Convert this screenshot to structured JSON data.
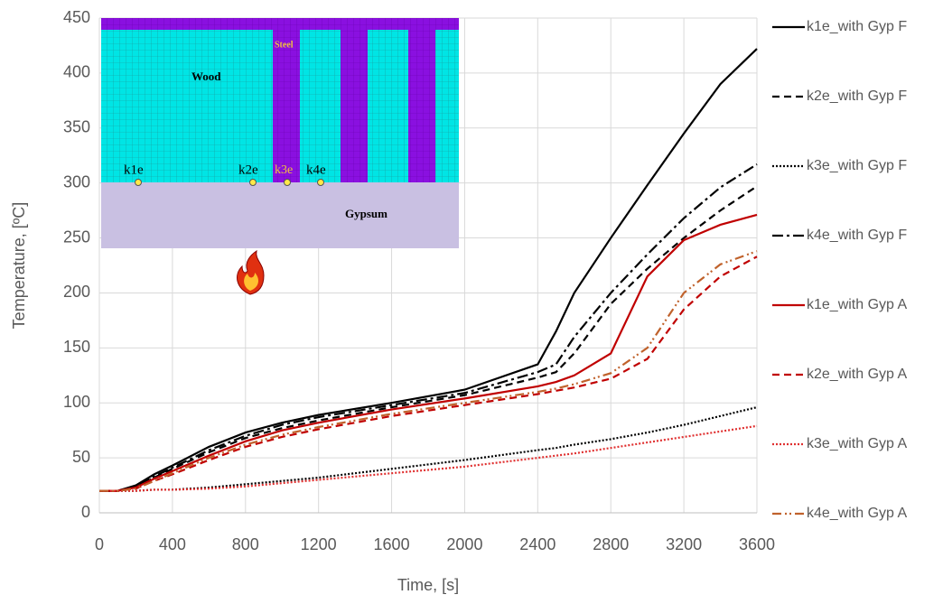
{
  "chart_data": {
    "type": "line",
    "xlabel": "Time, [s]",
    "ylabel": "Temperature, [ºC]",
    "x": [
      0,
      100,
      200,
      300,
      400,
      600,
      800,
      1000,
      1200,
      1600,
      2000,
      2400,
      2500,
      2600,
      2800,
      3000,
      3200,
      3400,
      3600
    ],
    "xlim": [
      0,
      3600
    ],
    "xticks": [
      0,
      400,
      800,
      1200,
      1600,
      2000,
      2400,
      2800,
      3200,
      3600
    ],
    "ylim": [
      0,
      450
    ],
    "yticks": [
      0,
      50,
      100,
      150,
      200,
      250,
      300,
      350,
      400,
      450
    ],
    "grid": true,
    "legend": "right",
    "series": [
      {
        "name": "k1e_with Gyp F",
        "color": "#000000",
        "line_style": "solid",
        "values": [
          20,
          20,
          25,
          35,
          43,
          60,
          73,
          82,
          89,
          100,
          112,
          135,
          165,
          200,
          250,
          298,
          345,
          390,
          422
        ]
      },
      {
        "name": "k2e_with Gyp F",
        "color": "#000000",
        "line_style": "dashed",
        "values": [
          20,
          20,
          23,
          32,
          40,
          55,
          68,
          77,
          84,
          96,
          107,
          123,
          128,
          145,
          190,
          222,
          250,
          275,
          297
        ]
      },
      {
        "name": "k3e_with Gyp F",
        "color": "#000000",
        "line_style": "dotted",
        "values": [
          20,
          20,
          20,
          21,
          21,
          23,
          26,
          29,
          32,
          40,
          48,
          57,
          59,
          62,
          67,
          73,
          80,
          88,
          96
        ]
      },
      {
        "name": "k4e_with Gyp F",
        "color": "#000000",
        "line_style": "dashdot",
        "values": [
          20,
          20,
          24,
          33,
          41,
          57,
          70,
          80,
          87,
          98,
          109,
          128,
          135,
          160,
          200,
          235,
          268,
          296,
          317
        ]
      },
      {
        "name": "k1e_with Gyp A",
        "color": "#c00000",
        "line_style": "solid",
        "values": [
          20,
          20,
          23,
          31,
          38,
          52,
          65,
          75,
          82,
          94,
          104,
          115,
          119,
          125,
          145,
          215,
          248,
          262,
          271
        ]
      },
      {
        "name": "k2e_with Gyp A",
        "color": "#c00000",
        "line_style": "dashed",
        "values": [
          20,
          20,
          22,
          29,
          35,
          48,
          60,
          69,
          76,
          88,
          98,
          108,
          111,
          114,
          122,
          140,
          185,
          215,
          233
        ]
      },
      {
        "name": "k3e_with Gyp A",
        "color": "#e03030",
        "line_style": "dotted",
        "values": [
          20,
          20,
          20,
          21,
          21,
          22,
          24,
          27,
          30,
          36,
          42,
          50,
          52,
          54,
          59,
          64,
          69,
          74,
          79
        ]
      },
      {
        "name": "k4e_with Gyp A",
        "color": "#c0622c",
        "line_style": "dashdotdot",
        "values": [
          20,
          20,
          22,
          29,
          36,
          50,
          62,
          71,
          78,
          90,
          100,
          110,
          113,
          117,
          127,
          150,
          200,
          226,
          238
        ]
      }
    ],
    "inset": {
      "materials": [
        "Wood",
        "Steel",
        "Gypsum"
      ],
      "points": [
        "k1e",
        "k2e",
        "k3e",
        "k4e"
      ]
    }
  }
}
